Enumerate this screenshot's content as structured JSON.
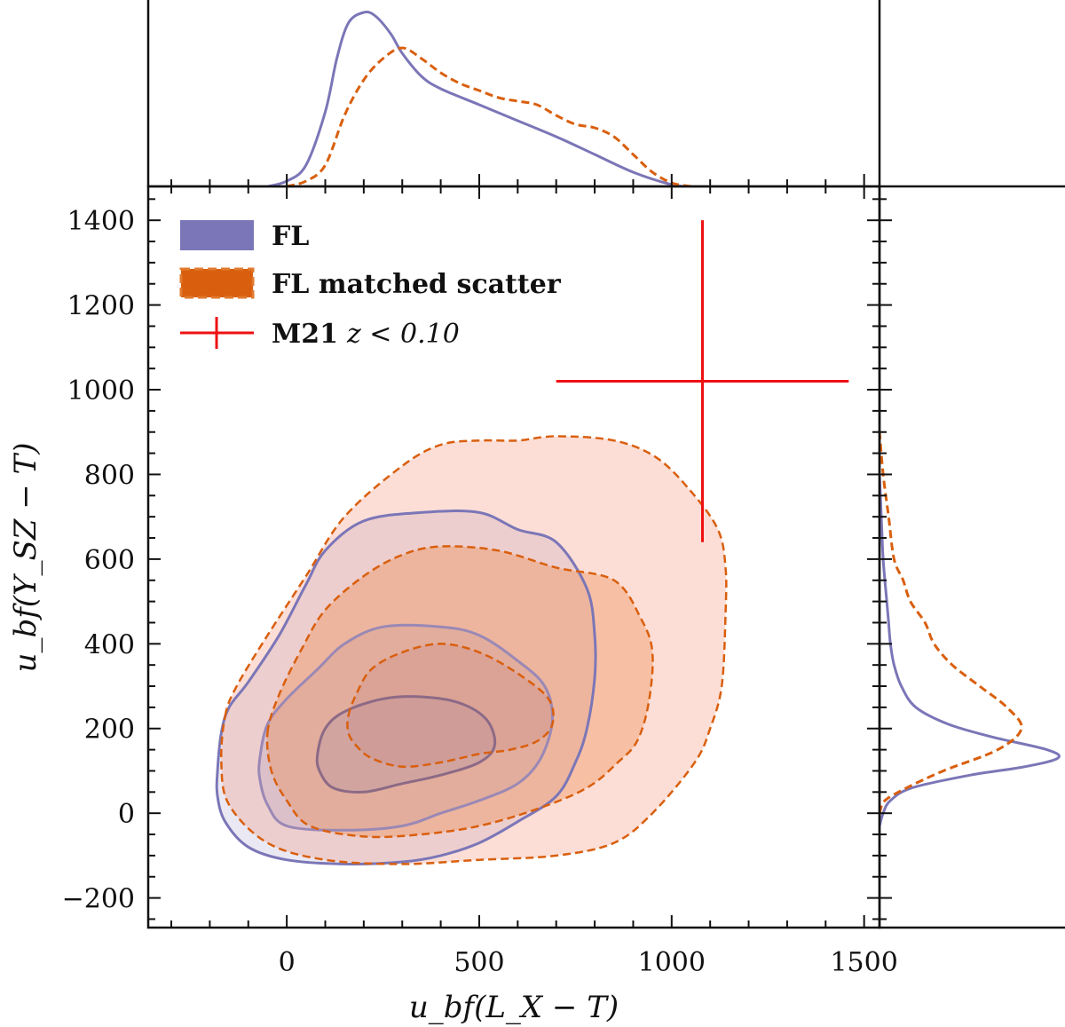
{
  "chart_data": {
    "type": "contour",
    "xlabel": "u_bf(L_X − T)",
    "ylabel": "u_bf(Y_SZ − T)",
    "xlim": [
      -360,
      1540
    ],
    "ylim": [
      -270,
      1480
    ],
    "xticks": [
      0,
      500,
      1000,
      1500
    ],
    "xtick_labels": [
      "0",
      "500",
      "1000",
      "1500"
    ],
    "yticks": [
      -200,
      0,
      200,
      400,
      600,
      800,
      1000,
      1200,
      1400
    ],
    "ytick_labels": [
      "−200",
      "0",
      "200",
      "400",
      "600",
      "800",
      "1000",
      "1200",
      "1400"
    ],
    "colors": {
      "FL": "#7b76b7",
      "FL_matched": "#d95f0e",
      "M21": "#ee1111"
    },
    "legend": {
      "position": "top-left",
      "entries": [
        {
          "label": "FL",
          "style": "solid"
        },
        {
          "label": "FL matched scatter",
          "style": "dashed"
        },
        {
          "label": "M21",
          "suffix": "z < 0.10",
          "style": "errorbar"
        }
      ]
    },
    "series": [
      {
        "name": "FL",
        "style": "solid",
        "levels": [
          {
            "points": [
              [
                -180,
                100
              ],
              [
                -170,
                190
              ],
              [
                -150,
                250
              ],
              [
                -100,
                310
              ],
              [
                -20,
                420
              ],
              [
                50,
                540
              ],
              [
                100,
                620
              ],
              [
                200,
                690
              ],
              [
                350,
                710
              ],
              [
                500,
                710
              ],
              [
                600,
                670
              ],
              [
                700,
                640
              ],
              [
                780,
                530
              ],
              [
                800,
                420
              ],
              [
                800,
                320
              ],
              [
                780,
                200
              ],
              [
                750,
                120
              ],
              [
                700,
                40
              ],
              [
                600,
                -20
              ],
              [
                500,
                -70
              ],
              [
                400,
                -100
              ],
              [
                300,
                -115
              ],
              [
                150,
                -120
              ],
              [
                0,
                -110
              ],
              [
                -100,
                -80
              ],
              [
                -160,
                -20
              ],
              [
                -180,
                40
              ]
            ]
          },
          {
            "points": [
              [
                -70,
                130
              ],
              [
                -50,
                210
              ],
              [
                0,
                270
              ],
              [
                80,
                340
              ],
              [
                150,
                400
              ],
              [
                250,
                440
              ],
              [
                400,
                440
              ],
              [
                500,
                420
              ],
              [
                600,
                360
              ],
              [
                670,
                300
              ],
              [
                690,
                220
              ],
              [
                660,
                130
              ],
              [
                600,
                70
              ],
              [
                500,
                30
              ],
              [
                400,
                0
              ],
              [
                300,
                -30
              ],
              [
                150,
                -40
              ],
              [
                0,
                -30
              ],
              [
                -50,
                20
              ],
              [
                -70,
                80
              ]
            ]
          },
          {
            "points": [
              [
                80,
                140
              ],
              [
                100,
                200
              ],
              [
                150,
                240
              ],
              [
                250,
                270
              ],
              [
                350,
                275
              ],
              [
                450,
                260
              ],
              [
                520,
                220
              ],
              [
                540,
                160
              ],
              [
                500,
                120
              ],
              [
                400,
                90
              ],
              [
                300,
                70
              ],
              [
                200,
                50
              ],
              [
                120,
                60
              ],
              [
                85,
                100
              ]
            ]
          }
        ],
        "marginal_x": [
          [
            -50,
            0
          ],
          [
            0,
            0.03
          ],
          [
            50,
            0.12
          ],
          [
            100,
            0.42
          ],
          [
            130,
            0.72
          ],
          [
            160,
            0.92
          ],
          [
            200,
            0.98
          ],
          [
            230,
            0.96
          ],
          [
            270,
            0.86
          ],
          [
            300,
            0.75
          ],
          [
            350,
            0.62
          ],
          [
            400,
            0.55
          ],
          [
            500,
            0.46
          ],
          [
            600,
            0.37
          ],
          [
            700,
            0.28
          ],
          [
            800,
            0.18
          ],
          [
            900,
            0.08
          ],
          [
            1000,
            0.01
          ],
          [
            1050,
            0
          ]
        ],
        "marginal_y": [
          [
            -30,
            0
          ],
          [
            0,
            0.02
          ],
          [
            30,
            0.06
          ],
          [
            60,
            0.18
          ],
          [
            90,
            0.5
          ],
          [
            110,
            0.8
          ],
          [
            130,
            0.98
          ],
          [
            150,
            0.92
          ],
          [
            180,
            0.62
          ],
          [
            210,
            0.38
          ],
          [
            250,
            0.2
          ],
          [
            300,
            0.12
          ],
          [
            350,
            0.08
          ],
          [
            400,
            0.06
          ],
          [
            450,
            0.05
          ],
          [
            500,
            0.04
          ],
          [
            600,
            0.02
          ],
          [
            700,
            0.01
          ],
          [
            800,
            0
          ]
        ]
      },
      {
        "name": "FL matched scatter",
        "style": "dashed",
        "levels": [
          {
            "points": [
              [
                -160,
                230
              ],
              [
                -130,
                300
              ],
              [
                -50,
                420
              ],
              [
                50,
                560
              ],
              [
                150,
                700
              ],
              [
                300,
                820
              ],
              [
                400,
                870
              ],
              [
                500,
                880
              ],
              [
                600,
                880
              ],
              [
                700,
                890
              ],
              [
                850,
                880
              ],
              [
                960,
                840
              ],
              [
                1050,
                760
              ],
              [
                1120,
                670
              ],
              [
                1140,
                580
              ],
              [
                1140,
                470
              ],
              [
                1130,
                300
              ],
              [
                1100,
                200
              ],
              [
                1060,
                120
              ],
              [
                950,
                0
              ],
              [
                850,
                -70
              ],
              [
                700,
                -100
              ],
              [
                500,
                -110
              ],
              [
                300,
                -120
              ],
              [
                100,
                -110
              ],
              [
                -50,
                -70
              ],
              [
                -150,
                20
              ],
              [
                -170,
                120
              ]
            ]
          },
          {
            "points": [
              [
                -50,
                190
              ],
              [
                -20,
                280
              ],
              [
                40,
                390
              ],
              [
                100,
                480
              ],
              [
                200,
                560
              ],
              [
                300,
                610
              ],
              [
                400,
                630
              ],
              [
                550,
                620
              ],
              [
                700,
                580
              ],
              [
                850,
                550
              ],
              [
                920,
                460
              ],
              [
                950,
                380
              ],
              [
                940,
                260
              ],
              [
                910,
                170
              ],
              [
                860,
                120
              ],
              [
                780,
                60
              ],
              [
                650,
                10
              ],
              [
                500,
                -30
              ],
              [
                350,
                -50
              ],
              [
                200,
                -55
              ],
              [
                60,
                -30
              ],
              [
                0,
                30
              ],
              [
                -40,
                100
              ]
            ]
          },
          {
            "points": [
              [
                160,
                230
              ],
              [
                180,
                280
              ],
              [
                220,
                340
              ],
              [
                300,
                380
              ],
              [
                400,
                400
              ],
              [
                500,
                380
              ],
              [
                600,
                330
              ],
              [
                680,
                270
              ],
              [
                690,
                210
              ],
              [
                650,
                170
              ],
              [
                580,
                150
              ],
              [
                500,
                140
              ],
              [
                400,
                120
              ],
              [
                300,
                110
              ],
              [
                220,
                130
              ],
              [
                180,
                160
              ],
              [
                160,
                190
              ]
            ]
          }
        ],
        "marginal_x": [
          [
            0,
            0
          ],
          [
            50,
            0.03
          ],
          [
            100,
            0.12
          ],
          [
            150,
            0.4
          ],
          [
            200,
            0.6
          ],
          [
            250,
            0.72
          ],
          [
            300,
            0.78
          ],
          [
            350,
            0.72
          ],
          [
            400,
            0.64
          ],
          [
            450,
            0.58
          ],
          [
            500,
            0.54
          ],
          [
            550,
            0.5
          ],
          [
            600,
            0.48
          ],
          [
            650,
            0.46
          ],
          [
            700,
            0.4
          ],
          [
            750,
            0.35
          ],
          [
            800,
            0.33
          ],
          [
            850,
            0.28
          ],
          [
            900,
            0.18
          ],
          [
            950,
            0.08
          ],
          [
            1000,
            0.02
          ],
          [
            1050,
            0
          ]
        ],
        "marginal_y": [
          [
            0,
            0
          ],
          [
            30,
            0.03
          ],
          [
            60,
            0.15
          ],
          [
            100,
            0.35
          ],
          [
            150,
            0.65
          ],
          [
            200,
            0.78
          ],
          [
            250,
            0.7
          ],
          [
            300,
            0.55
          ],
          [
            350,
            0.4
          ],
          [
            400,
            0.3
          ],
          [
            450,
            0.25
          ],
          [
            500,
            0.17
          ],
          [
            550,
            0.13
          ],
          [
            600,
            0.08
          ],
          [
            700,
            0.05
          ],
          [
            800,
            0.02
          ],
          [
            900,
            0
          ]
        ]
      }
    ],
    "errorbar": {
      "name": "M21",
      "x": 1080,
      "y": 1020,
      "xerr": [
        380,
        380
      ],
      "yerr": [
        380,
        380
      ]
    }
  }
}
